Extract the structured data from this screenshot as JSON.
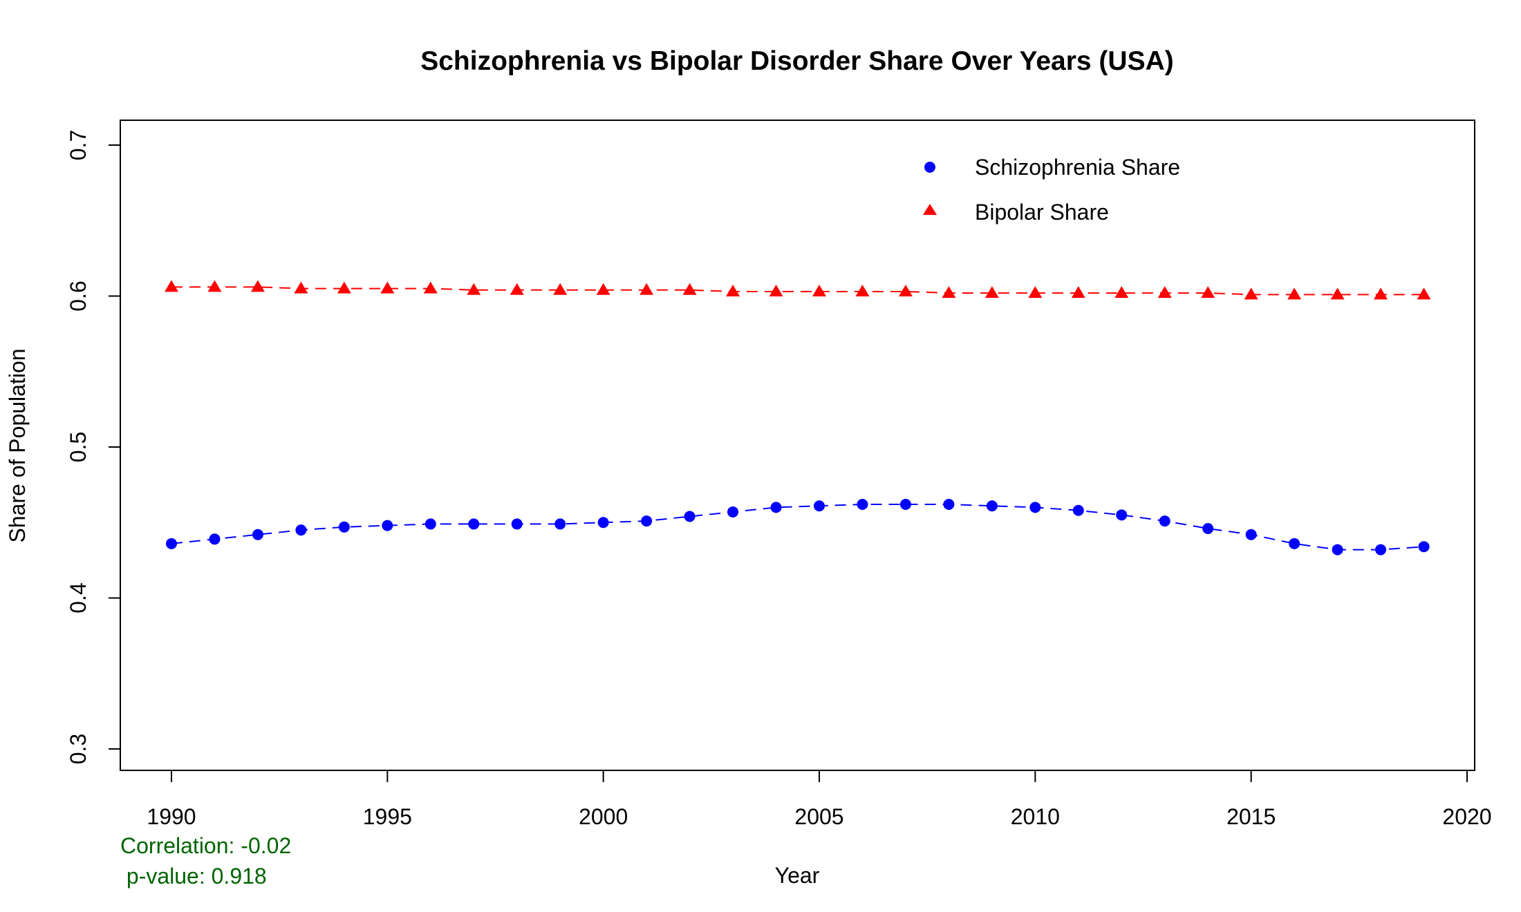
{
  "chart_data": {
    "type": "line",
    "title": "Schizophrenia vs Bipolar Disorder Share Over Years (USA)",
    "xlabel": "Year",
    "ylabel": "Share of Population",
    "xlim": [
      1989,
      2020
    ],
    "ylim": [
      0.3,
      0.7
    ],
    "x_ticks": [
      1990,
      1995,
      2000,
      2005,
      2010,
      2015,
      2020
    ],
    "x_tick_labels": [
      "1990",
      "1995",
      "2000",
      "2005",
      "2010",
      "2015",
      "2020"
    ],
    "y_ticks": [
      0.3,
      0.4,
      0.5,
      0.6,
      0.7
    ],
    "y_tick_labels": [
      "0.3",
      "0.4",
      "0.5",
      "0.6",
      "0.7"
    ],
    "grid": false,
    "legend_position": "top-right",
    "x": [
      1990,
      1991,
      1992,
      1993,
      1994,
      1995,
      1996,
      1997,
      1998,
      1999,
      2000,
      2001,
      2002,
      2003,
      2004,
      2005,
      2006,
      2007,
      2008,
      2009,
      2010,
      2011,
      2012,
      2013,
      2014,
      2015,
      2016,
      2017,
      2018,
      2019
    ],
    "series": [
      {
        "name": "Schizophrenia Share",
        "color": "#0000ff",
        "marker": "circle",
        "line_style": "dashed",
        "values": [
          0.436,
          0.439,
          0.442,
          0.445,
          0.447,
          0.448,
          0.449,
          0.449,
          0.449,
          0.449,
          0.45,
          0.451,
          0.454,
          0.457,
          0.46,
          0.461,
          0.462,
          0.462,
          0.462,
          0.461,
          0.46,
          0.458,
          0.455,
          0.451,
          0.446,
          0.442,
          0.436,
          0.432,
          0.432,
          0.434
        ]
      },
      {
        "name": "Bipolar Share",
        "color": "#ff0000",
        "marker": "triangle",
        "line_style": "dashed",
        "values": [
          0.606,
          0.606,
          0.606,
          0.605,
          0.605,
          0.605,
          0.605,
          0.604,
          0.604,
          0.604,
          0.604,
          0.604,
          0.604,
          0.603,
          0.603,
          0.603,
          0.603,
          0.603,
          0.602,
          0.602,
          0.602,
          0.602,
          0.602,
          0.602,
          0.602,
          0.601,
          0.601,
          0.601,
          0.601,
          0.601
        ]
      }
    ],
    "annotations": [
      {
        "name": "correlation",
        "text": "Correlation: -0.02",
        "color": "#006400"
      },
      {
        "name": "p-value",
        "text": " p-value: 0.918",
        "color": "#006400"
      }
    ]
  }
}
